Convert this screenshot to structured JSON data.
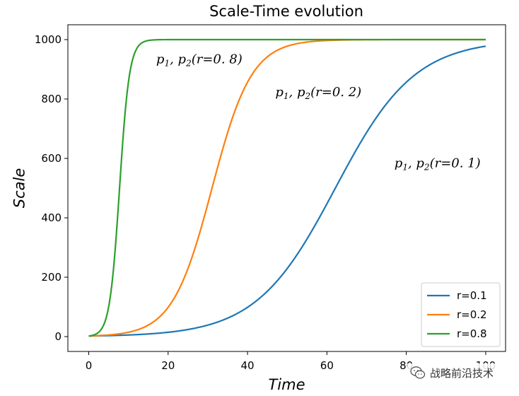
{
  "chart_data": {
    "type": "line",
    "title": "Scale-Time evolution",
    "xlabel": "Time",
    "ylabel": "Scale",
    "xlim": [
      -5.25,
      105
    ],
    "ylim": [
      -50,
      1050
    ],
    "xticks": [
      0,
      20,
      40,
      60,
      80,
      100
    ],
    "yticks": [
      0,
      200,
      400,
      600,
      800,
      1000
    ],
    "grid": false,
    "legend_position": "lower-right",
    "model": {
      "K": 1000,
      "N0": 2
    },
    "series": [
      {
        "name": "r=0.1",
        "r": 0.1,
        "color": "#1f77b4"
      },
      {
        "name": "r=0.2",
        "r": 0.2,
        "color": "#ff7f0e"
      },
      {
        "name": "r=0.8",
        "r": 0.8,
        "color": "#2ca02c"
      }
    ],
    "annotations": [
      {
        "base": "p",
        "sub1": "1",
        "mid": ", p",
        "sub2": "2",
        "tail": "(r=0. 8)",
        "x": 17,
        "y": 920
      },
      {
        "base": "p",
        "sub1": "1",
        "mid": ", p",
        "sub2": "2",
        "tail": "(r=0. 2)",
        "x": 47,
        "y": 810
      },
      {
        "base": "p",
        "sub1": "1",
        "mid": ", p",
        "sub2": "2",
        "tail": "(r=0. 1)",
        "x": 77,
        "y": 570
      }
    ]
  },
  "watermark": {
    "text": "战略前沿技术",
    "icon": "wechat-icon"
  }
}
